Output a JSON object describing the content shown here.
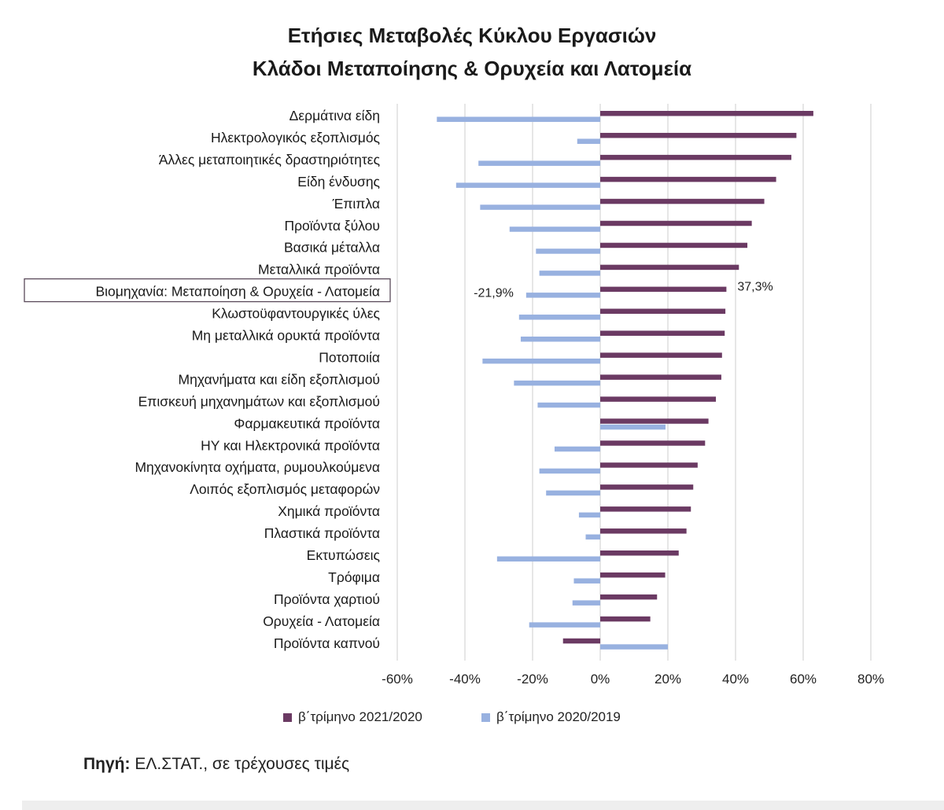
{
  "title_line1": "Ετήσιες Μεταβολές Κύκλου Εργασιών",
  "title_line2": "Κλάδοι Μεταποίησης & Ορυχεία και Λατομεία",
  "source_label": "Πηγή:",
  "source_text": "ΕΛ.ΣΤΑΤ., σε τρέχουσες τιμές",
  "colors": {
    "series_2021": "#6b3a63",
    "series_2020": "#98b1e0",
    "grid": "#d9d9d9",
    "highlight_border": "#5a4a5a"
  },
  "chart_data": {
    "type": "bar",
    "orientation": "horizontal",
    "xlim": [
      -0.6,
      0.8
    ],
    "x_ticks": [
      "-60%",
      "-40%",
      "-20%",
      "0%",
      "20%",
      "40%",
      "60%",
      "80%"
    ],
    "x_tick_values": [
      -0.6,
      -0.4,
      -0.2,
      0,
      0.2,
      0.4,
      0.6,
      0.8
    ],
    "grid": true,
    "legend_position": "bottom",
    "categories": [
      "Δερμάτινα είδη",
      "Ηλεκτρολογικός εξοπλισμός",
      "Άλλες μεταποιητικές δραστηριότητες",
      "Είδη ένδυσης",
      "Έπιπλα",
      "Προϊόντα ξύλου",
      "Βασικά μέταλλα",
      "Μεταλλικά προϊόντα",
      "Βιομηχανία: Μεταποίηση & Ορυχεία - Λατομεία",
      "Κλωστοϋφαντουργικές ύλες",
      "Μη μεταλλικά ορυκτά προϊόντα",
      "Ποτοποιία",
      "Μηχανήματα και είδη εξοπλισμού",
      "Επισκευή μηχανημάτων και εξοπλισμού",
      "Φαρμακευτικά προϊόντα",
      "ΗΥ και Ηλεκτρονικά προϊόντα",
      "Μηχανοκίνητα οχήματα, ρυμουλκούμενα",
      "Λοιπός εξοπλισμός μεταφορών",
      "Χημικά προϊόντα",
      "Πλαστικά προϊόντα",
      "Εκτυπώσεις",
      "Τρόφιμα",
      "Προϊόντα χαρτιού",
      "Ορυχεία - Λατομεία",
      "Προϊόντα καπνού"
    ],
    "highlight_category": "Βιομηχανία: Μεταποίηση & Ορυχεία - Λατομεία",
    "series": [
      {
        "name": "β΄τρίμηνο 2021/2020",
        "values": [
          0.63,
          0.58,
          0.565,
          0.52,
          0.485,
          0.448,
          0.435,
          0.41,
          0.373,
          0.37,
          0.368,
          0.36,
          0.358,
          0.342,
          0.32,
          0.31,
          0.288,
          0.275,
          0.268,
          0.255,
          0.232,
          0.192,
          0.168,
          0.148,
          -0.11
        ]
      },
      {
        "name": "β΄τρίμηνο 2020/2019",
        "values": [
          -0.483,
          -0.068,
          -0.36,
          -0.426,
          -0.355,
          -0.268,
          -0.19,
          -0.18,
          -0.219,
          -0.24,
          -0.235,
          -0.348,
          -0.255,
          -0.185,
          0.193,
          -0.135,
          -0.18,
          -0.16,
          -0.063,
          -0.043,
          -0.305,
          -0.078,
          -0.082,
          -0.21,
          0.2
        ]
      }
    ],
    "data_labels": [
      {
        "category": "Βιομηχανία: Μεταποίηση & Ορυχεία - Λατομεία",
        "series": "β΄τρίμηνο 2021/2020",
        "text": "37,3%"
      },
      {
        "category": "Βιομηχανία: Μεταποίηση & Ορυχεία - Λατομεία",
        "series": "β΄τρίμηνο 2020/2019",
        "text": "-21,9%"
      }
    ]
  }
}
